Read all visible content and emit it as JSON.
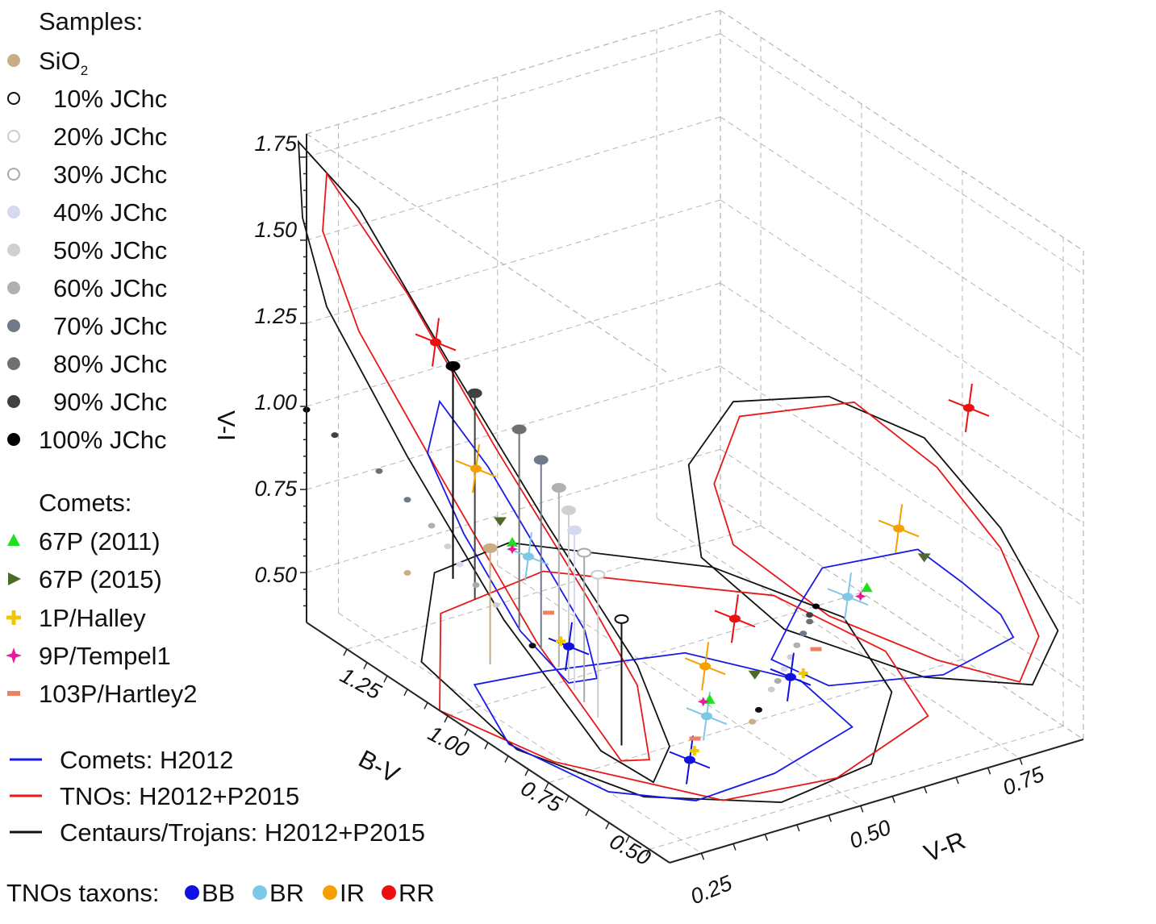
{
  "chart_data": {
    "type": "scatter",
    "subtype": "3d-color-color-projections",
    "axes": {
      "x": {
        "label": "V-R",
        "ticks": [
          "0.25",
          "0.50",
          "0.75"
        ],
        "range": [
          0.2,
          0.85
        ]
      },
      "y": {
        "label": "B-V",
        "ticks": [
          "0.50",
          "0.75",
          "1.00",
          "1.25"
        ],
        "range": [
          0.45,
          1.35
        ]
      },
      "z": {
        "label": "V-I",
        "ticks": [
          "0.50",
          "0.75",
          "1.00",
          "1.25",
          "1.50",
          "1.75"
        ],
        "range": [
          0.35,
          1.82
        ]
      }
    },
    "samples_title": "Samples:",
    "samples": [
      {
        "name": "SiO",
        "sub": "2",
        "color": "#c9ad85",
        "filled": true,
        "bv": 1.1,
        "vr": 0.33,
        "vi": 0.7
      },
      {
        "name": "10% JChc",
        "color": "#111111",
        "filled": false,
        "bv": 0.79,
        "vr": 0.34,
        "vi": 0.73
      },
      {
        "name": "20% JChc",
        "color": "#cccccc",
        "filled": false,
        "bv": 0.88,
        "vr": 0.36,
        "vi": 0.78
      },
      {
        "name": "30% JChc",
        "color": "#aaaaaa",
        "filled": false,
        "bv": 0.93,
        "vr": 0.37,
        "vi": 0.8
      },
      {
        "name": "40% JChc",
        "color": "#d6d9ef",
        "filled": true,
        "bv": 0.97,
        "vr": 0.38,
        "vi": 0.83
      },
      {
        "name": "50% JChc",
        "color": "#d0d0d0",
        "filled": true,
        "bv": 1.0,
        "vr": 0.39,
        "vi": 0.86
      },
      {
        "name": "60% JChc",
        "color": "#b0b0b0",
        "filled": true,
        "bv": 1.04,
        "vr": 0.4,
        "vi": 0.89
      },
      {
        "name": "70% JChc",
        "color": "#707a88",
        "filled": true,
        "bv": 1.1,
        "vr": 0.41,
        "vi": 0.92
      },
      {
        "name": "80% JChc",
        "color": "#707070",
        "filled": true,
        "bv": 1.17,
        "vr": 0.42,
        "vi": 0.95
      },
      {
        "name": "90% JChc",
        "color": "#404040",
        "filled": true,
        "bv": 1.28,
        "vr": 0.42,
        "vi": 0.97
      },
      {
        "name": "100% JChc",
        "color": "#000000",
        "filled": true,
        "bv": 1.35,
        "vr": 0.43,
        "vi": 0.99
      }
    ],
    "comets_title": "Comets:",
    "comets": [
      {
        "name": "67P (2011)",
        "color": "#1ee01e",
        "marker": "triangle-up",
        "bv": 0.84,
        "vr": 0.51,
        "vi": 1.0
      },
      {
        "name": "67P (2015)",
        "color": "#4e6a2a",
        "marker": "triangle-right",
        "bv": 0.87,
        "vr": 0.6,
        "vi": 1.04
      },
      {
        "name": "1P/Halley",
        "color": "#f0c800",
        "marker": "plus",
        "bv": 0.72,
        "vr": 0.41,
        "vi": 0.8
      },
      {
        "name": "9P/Tempel1",
        "color": "#e8199a",
        "marker": "star",
        "bv": 0.84,
        "vr": 0.5,
        "vi": 0.98
      },
      {
        "name": "103P/Hartley2",
        "color": "#f08060",
        "marker": "rect",
        "bv": 0.75,
        "vr": 0.43,
        "vi": 0.86
      }
    ],
    "regions": [
      {
        "name": "Comets: H2012",
        "color": "#1a1ae6"
      },
      {
        "name": "TNOs: H2012+P2015",
        "color": "#e81818"
      },
      {
        "name": "Centaurs/Trojans: H2012+P2015",
        "color": "#111111"
      }
    ],
    "taxons_title": "TNOs taxons:",
    "taxons": [
      {
        "name": "BB",
        "color": "#1010e0",
        "bv": 0.7,
        "vr": 0.39,
        "vi": 0.8
      },
      {
        "name": "BR",
        "color": "#7ec8e6",
        "bv": 0.8,
        "vr": 0.48,
        "vi": 0.99
      },
      {
        "name": "IR",
        "color": "#f5a000",
        "bv": 0.93,
        "vr": 0.56,
        "vi": 1.15
      },
      {
        "name": "RR",
        "color": "#ee1010",
        "bv": 1.03,
        "vr": 0.67,
        "vi": 1.45
      }
    ]
  }
}
